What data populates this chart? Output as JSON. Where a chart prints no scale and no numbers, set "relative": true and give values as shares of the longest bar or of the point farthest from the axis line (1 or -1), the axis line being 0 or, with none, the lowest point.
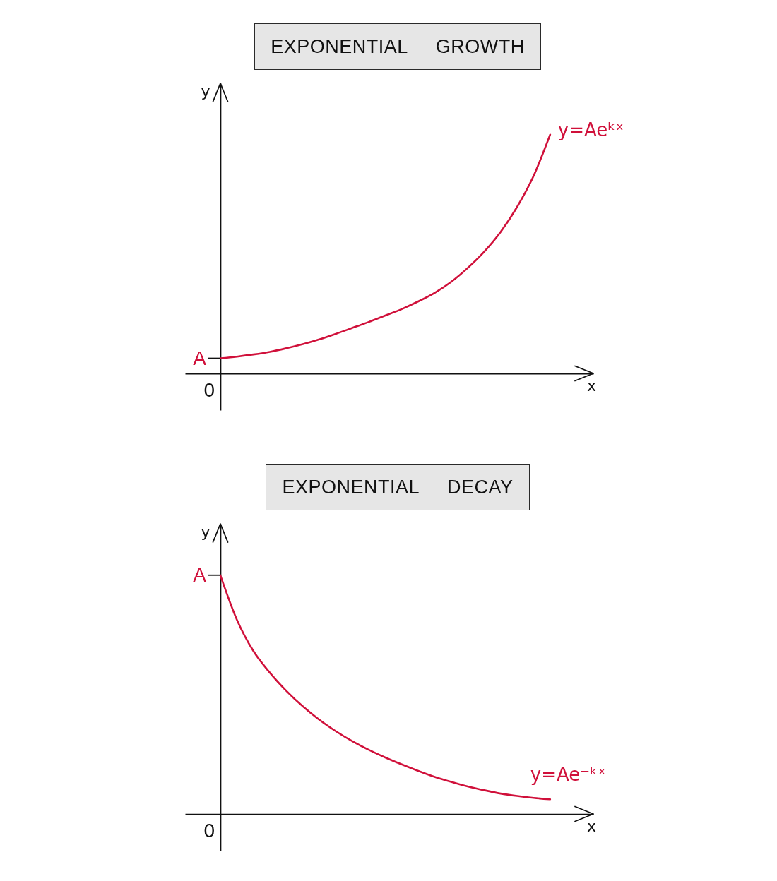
{
  "chart_data": [
    {
      "type": "line",
      "title": "EXPONENTIAL GROWTH",
      "xlabel": "x",
      "ylabel": "y",
      "relative": true,
      "categories": [
        null,
        null,
        null,
        null,
        null,
        null,
        null,
        null,
        null,
        null,
        null,
        null,
        null,
        null,
        null,
        null,
        null,
        null,
        null,
        null,
        null
      ],
      "series": [
        {
          "name": "y=Aeᵏˣ",
          "color": "#d0103a",
          "values": [
            0.064,
            0.071,
            0.08,
            0.091,
            0.106,
            0.123,
            0.143,
            0.166,
            0.191,
            0.216,
            0.243,
            0.27,
            0.302,
            0.338,
            0.384,
            0.442,
            0.51,
            0.593,
            0.698,
            0.828,
            1
          ]
        }
      ],
      "annotations": [
        "A",
        "0"
      ]
    },
    {
      "type": "line",
      "title": "EXPONENTIAL DECAY",
      "xlabel": "x",
      "ylabel": "y",
      "relative": true,
      "categories": [
        null,
        null,
        null,
        null,
        null,
        null,
        null,
        null,
        null,
        null,
        null,
        null,
        null,
        null,
        null,
        null,
        null,
        null,
        null,
        null,
        null
      ],
      "series": [
        {
          "name": "y=Ae⁻ᵏˣ",
          "color": "#d0103a",
          "values": [
            1,
            0.814,
            0.683,
            0.592,
            0.516,
            0.451,
            0.395,
            0.347,
            0.305,
            0.269,
            0.237,
            0.208,
            0.181,
            0.156,
            0.135,
            0.116,
            0.1,
            0.086,
            0.076,
            0.068,
            0.062
          ]
        }
      ],
      "annotations": [
        "A",
        "0"
      ]
    }
  ]
}
